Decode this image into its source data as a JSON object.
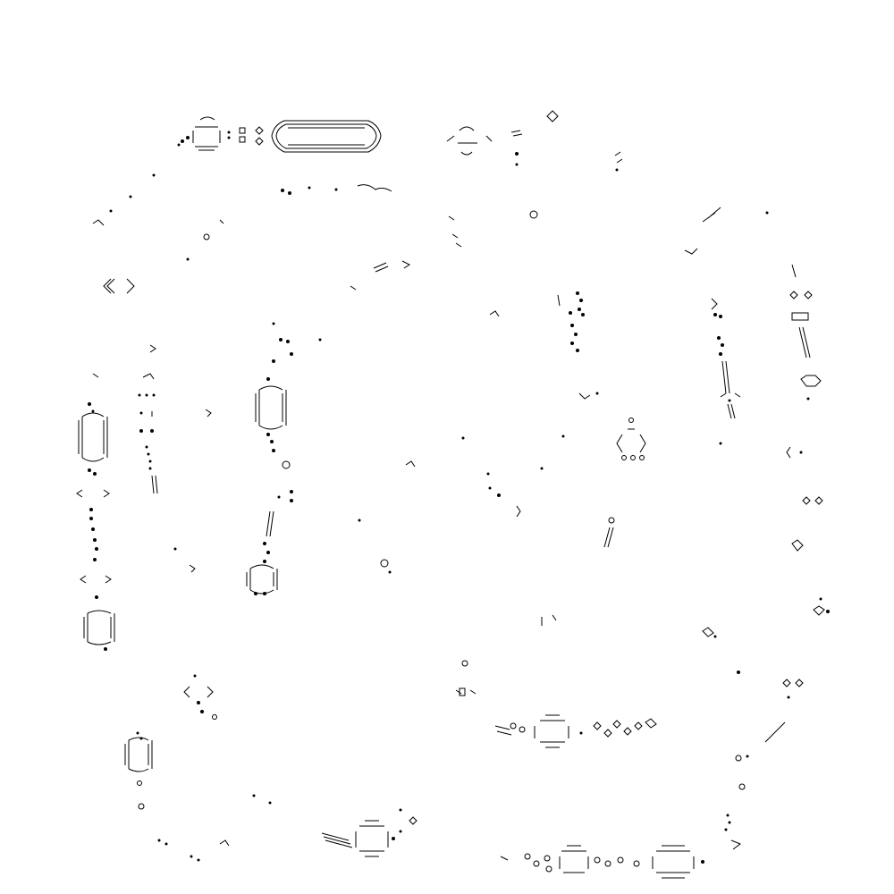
{
  "image": {
    "background_color": "#ffffff",
    "ink_color": "#000000",
    "glyphs": {
      "capsule": "horizontal-capsule-shape",
      "vertical_capsule": "vertical-capsule-shape",
      "bracket_pair": "angle-bracket-pair",
      "diamond": "small-diamond-shape",
      "dot": "small-dot",
      "ring": "small-ring",
      "dash_cluster": "parallel-dash-cluster"
    }
  }
}
